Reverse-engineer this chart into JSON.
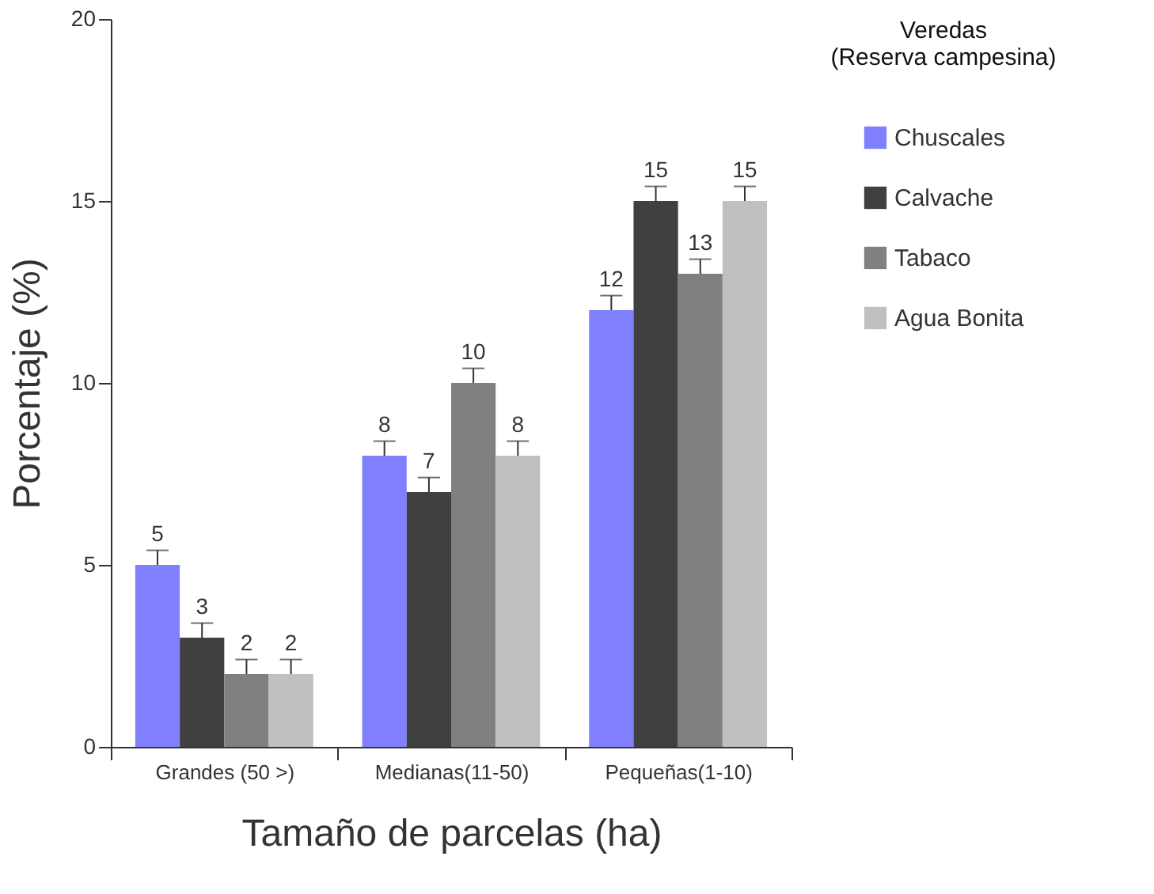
{
  "chart_data": {
    "type": "bar",
    "xlabel": "Tamaño de parcelas (ha)",
    "ylabel": "Porcentaje (%)",
    "legend_title": "Veredas\n(Reserva campesina)",
    "categories": [
      "Grandes (50 >)",
      "Medianas(11-50)",
      "Pequeñas(1-10)"
    ],
    "series": [
      {
        "name": "Chuscales",
        "color": "#8080ff",
        "values": [
          5,
          8,
          12
        ],
        "errors": [
          [
            5,
            5.4
          ],
          [
            8,
            8.4
          ],
          [
            12,
            12.4
          ]
        ]
      },
      {
        "name": "Calvache",
        "color": "#404040",
        "values": [
          3,
          7,
          15
        ],
        "errors": [
          [
            3,
            3.4
          ],
          [
            7,
            7.4
          ],
          [
            15,
            15.4
          ]
        ]
      },
      {
        "name": "Tabaco",
        "color": "#808080",
        "values": [
          2,
          10,
          13
        ],
        "errors": [
          [
            2,
            2.4
          ],
          [
            10,
            10.4
          ],
          [
            13,
            13.4
          ]
        ]
      },
      {
        "name": "Agua Bonita",
        "color": "#c0c0c0",
        "values": [
          2,
          8,
          15
        ],
        "errors": [
          [
            2,
            2.4
          ],
          [
            8,
            8.4
          ],
          [
            15,
            15.4
          ]
        ]
      }
    ],
    "ylim": [
      0,
      20
    ],
    "yticks": [
      0,
      5,
      10,
      15,
      20
    ],
    "grid": false,
    "legend": "right",
    "data_labels": true
  }
}
